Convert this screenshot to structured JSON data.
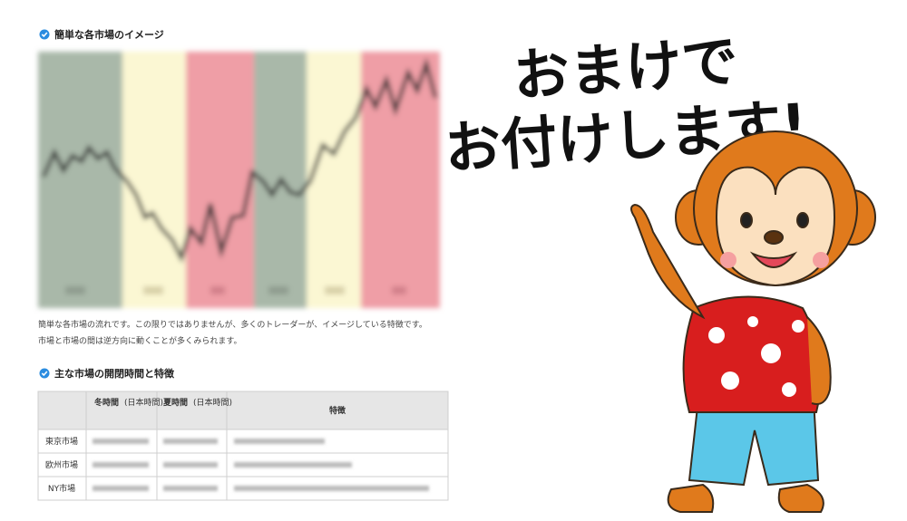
{
  "article": {
    "heading1": "簡単な各市場のイメージ",
    "paragraph": [
      "簡単な各市場の流れです。この限りではありませんが、多くのトレーダーが、イメージしている特徴です。",
      "市場と市場の間は逆方向に動くことが多くみられます。"
    ],
    "heading2": "主な市場の開閉時間と特徴",
    "table": {
      "header": [
        [
          "冬時間",
          "(日本時間)"
        ],
        [
          "夏時間",
          "(日本時間)"
        ],
        [
          "特徴"
        ]
      ],
      "rows": [
        "東京市場",
        "欧州市場",
        "NY市場"
      ]
    }
  },
  "banner": {
    "line1": "おまけで",
    "line2": "お付けします!"
  }
}
